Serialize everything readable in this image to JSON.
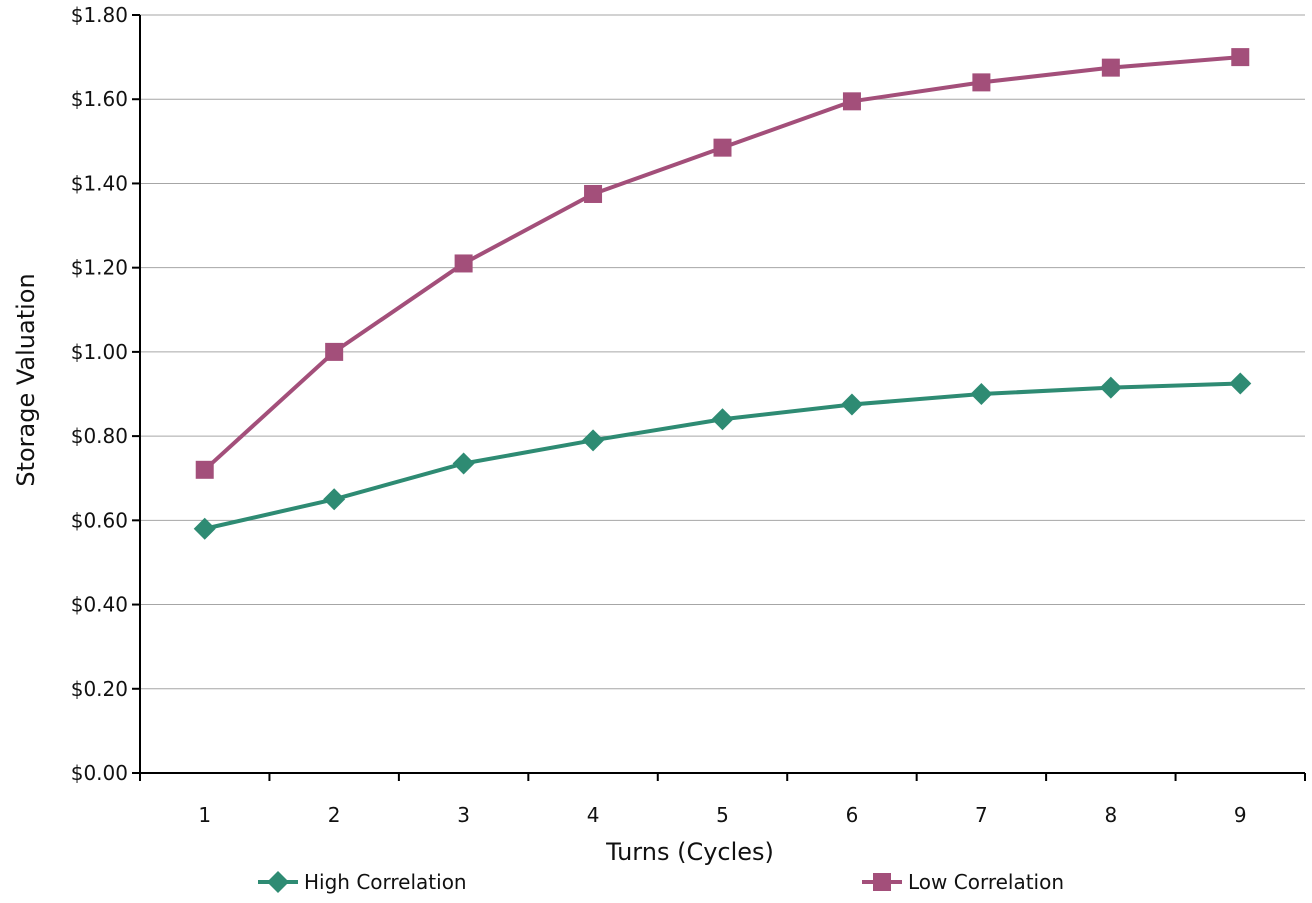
{
  "chart_data": {
    "type": "line",
    "title": "",
    "xlabel": "Turns (Cycles)",
    "ylabel": "Storage Valuation",
    "categories": [
      "1",
      "2",
      "3",
      "4",
      "5",
      "6",
      "7",
      "8",
      "9"
    ],
    "y_ticks": [
      "$0.00",
      "$0.20",
      "$0.40",
      "$0.60",
      "$0.80",
      "$1.00",
      "$1.20",
      "$1.40",
      "$1.60",
      "$1.80"
    ],
    "ylim": [
      0,
      1.8
    ],
    "grid": "horizontal",
    "legend_position": "bottom",
    "series": [
      {
        "name": "High Correlation",
        "color": "#2e8b73",
        "marker": "diamond",
        "values": [
          0.58,
          0.65,
          0.735,
          0.79,
          0.84,
          0.875,
          0.9,
          0.915,
          0.925
        ]
      },
      {
        "name": "Low Correlation",
        "color": "#a34f7a",
        "marker": "square",
        "values": [
          0.72,
          1.0,
          1.21,
          1.375,
          1.485,
          1.595,
          1.64,
          1.675,
          1.7
        ]
      }
    ]
  }
}
